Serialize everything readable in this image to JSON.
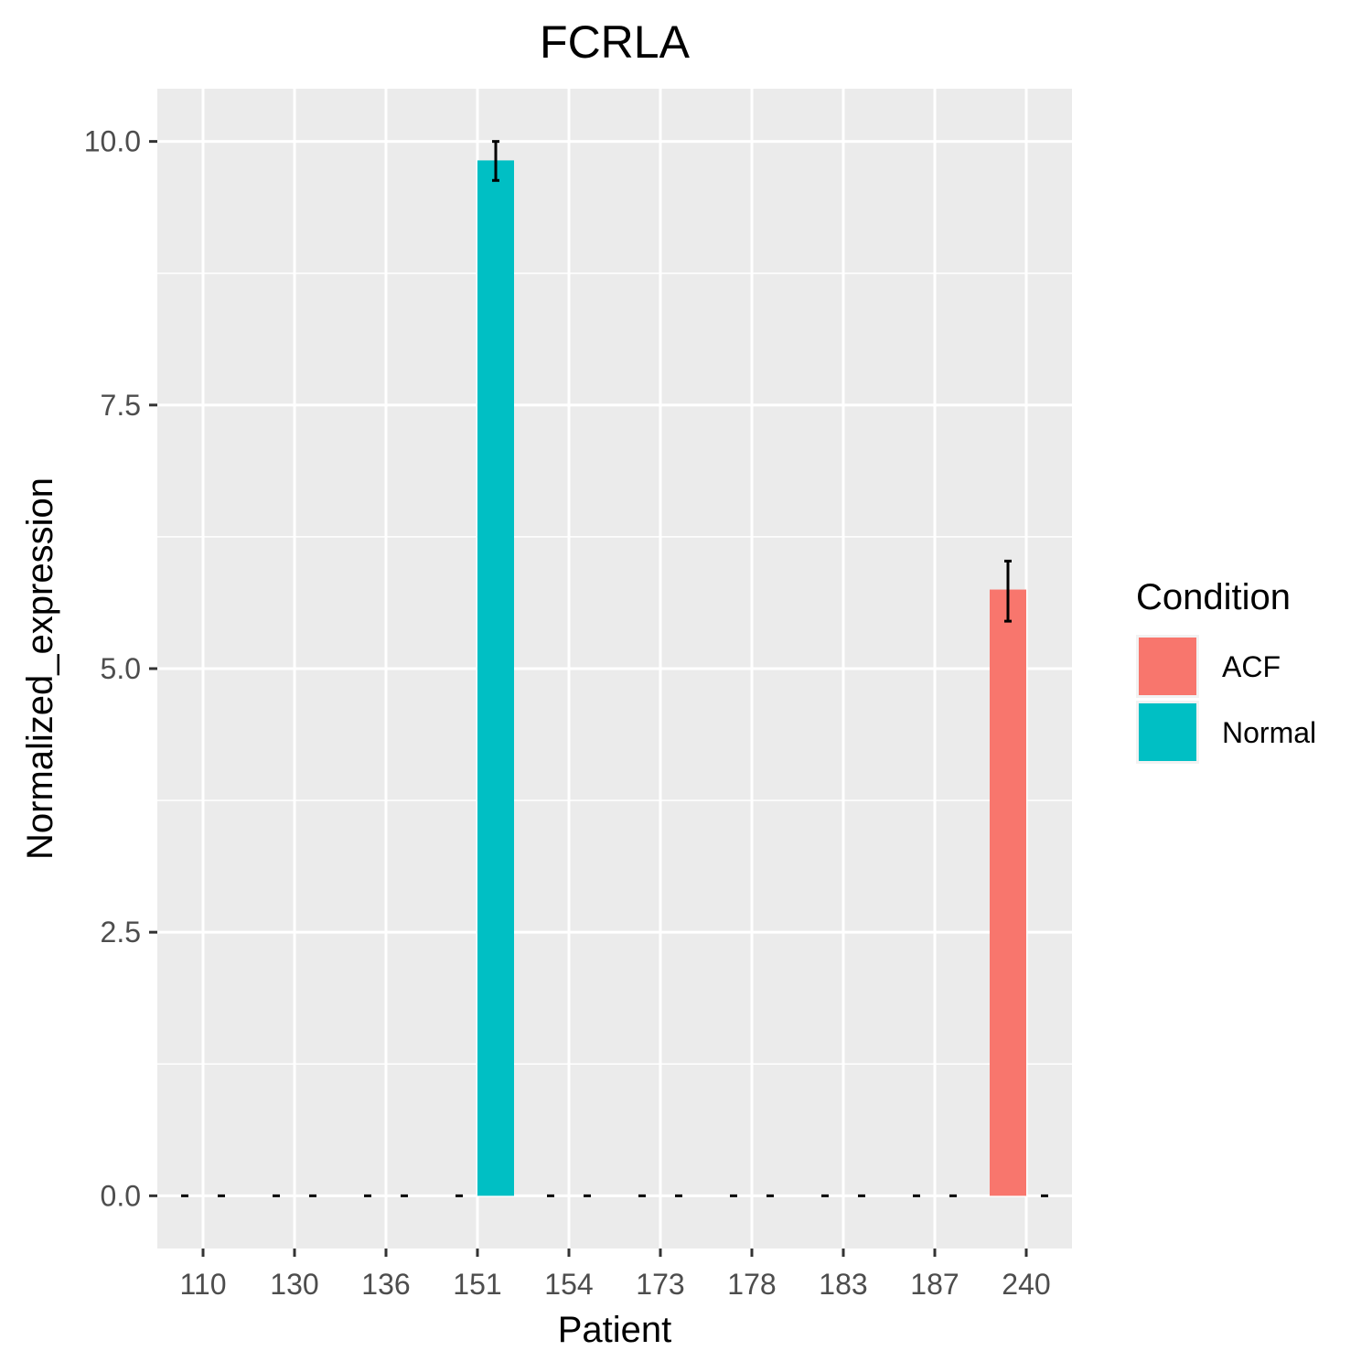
{
  "chart_data": {
    "type": "bar",
    "title": "FCRLA",
    "xlabel": "Patient",
    "ylabel": "Normalized_expression",
    "categories": [
      "110",
      "130",
      "136",
      "151",
      "154",
      "173",
      "178",
      "183",
      "187",
      "240"
    ],
    "ylim": [
      -0.5,
      10.5
    ],
    "y_ticks": [
      0.0,
      2.5,
      5.0,
      7.5,
      10.0
    ],
    "y_tick_labels": [
      "0.0",
      "2.5",
      "5.0",
      "7.5",
      "10.0"
    ],
    "grid": true,
    "legend": {
      "title": "Condition",
      "placement": "right"
    },
    "series": [
      {
        "name": "ACF",
        "color": "#F8766D",
        "values": [
          0,
          0,
          0,
          0,
          0,
          0,
          0,
          0,
          0,
          5.75
        ],
        "error_low": [
          0,
          0,
          0,
          0,
          0,
          0,
          0,
          0,
          0,
          5.45
        ],
        "error_high": [
          0,
          0,
          0,
          0,
          0,
          0,
          0,
          0,
          0,
          6.02
        ]
      },
      {
        "name": "Normal",
        "color": "#00BFC4",
        "values": [
          0,
          0,
          0,
          9.82,
          0,
          0,
          0,
          0,
          0,
          0
        ],
        "error_low": [
          0,
          0,
          0,
          9.63,
          0,
          0,
          0,
          0,
          0,
          0
        ],
        "error_high": [
          0,
          0,
          0,
          10.0,
          0,
          0,
          0,
          0,
          0,
          0
        ]
      }
    ]
  }
}
